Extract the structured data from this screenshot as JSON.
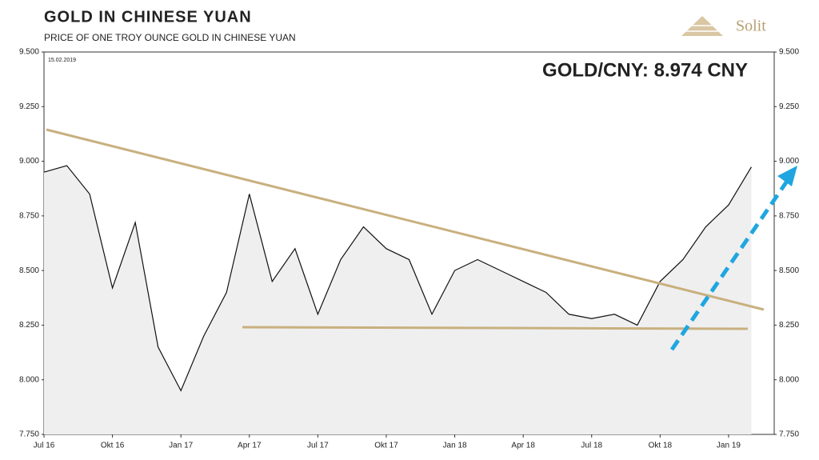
{
  "chart_data": {
    "type": "line",
    "title": "GOLD IN CHINESE YUAN",
    "subtitle": "PRICE OF ONE TROY OUNCE GOLD IN CHINESE YUAN",
    "date_label": "15.02.2019",
    "annotation": "GOLD/CNY: 8.974 CNY",
    "annotation_value": 8974,
    "logo": "Solit",
    "x": [
      "2016-07",
      "2016-08",
      "2016-09",
      "2016-10",
      "2016-11",
      "2016-12",
      "2017-01",
      "2017-02",
      "2017-03",
      "2017-04",
      "2017-05",
      "2017-06",
      "2017-07",
      "2017-08",
      "2017-09",
      "2017-10",
      "2017-11",
      "2017-12",
      "2018-01",
      "2018-02",
      "2018-03",
      "2018-04",
      "2018-05",
      "2018-06",
      "2018-07",
      "2018-08",
      "2018-09",
      "2018-10",
      "2018-11",
      "2018-12",
      "2019-01",
      "2019-02"
    ],
    "series": [
      {
        "name": "GOLD/CNY",
        "color": "#111111",
        "values": [
          8950,
          8980,
          8850,
          8420,
          8720,
          8150,
          7950,
          8200,
          8400,
          8850,
          8450,
          8600,
          8300,
          8550,
          8700,
          8600,
          8550,
          8300,
          8500,
          8550,
          8500,
          8450,
          8400,
          8300,
          8280,
          8300,
          8250,
          8450,
          8550,
          8700,
          8800,
          8974
        ]
      }
    ],
    "xlim": [
      "2016-07",
      "2019-03"
    ],
    "xticks": [
      {
        "value": "2016-07",
        "label": "Jul 16"
      },
      {
        "value": "2016-10",
        "label": "Okt 16"
      },
      {
        "value": "2017-01",
        "label": "Jan 17"
      },
      {
        "value": "2017-04",
        "label": "Apr 17"
      },
      {
        "value": "2017-07",
        "label": "Jul 17"
      },
      {
        "value": "2017-10",
        "label": "Okt 17"
      },
      {
        "value": "2018-01",
        "label": "Jan 18"
      },
      {
        "value": "2018-04",
        "label": "Apr 18"
      },
      {
        "value": "2018-07",
        "label": "Jul 18"
      },
      {
        "value": "2018-10",
        "label": "Okt 18"
      },
      {
        "value": "2019-01",
        "label": "Jan 19"
      }
    ],
    "ylim": [
      7750,
      9500
    ],
    "yticks": [
      {
        "value": 7750,
        "label": "7.750"
      },
      {
        "value": 8000,
        "label": "8.000"
      },
      {
        "value": 8250,
        "label": "8.250"
      },
      {
        "value": 8500,
        "label": "8.500"
      },
      {
        "value": 8750,
        "label": "8.750"
      },
      {
        "value": 9000,
        "label": "9.000"
      },
      {
        "value": 9250,
        "label": "9.250"
      },
      {
        "value": 9500,
        "label": "9.500"
      }
    ],
    "area_color": "#efefef"
  }
}
